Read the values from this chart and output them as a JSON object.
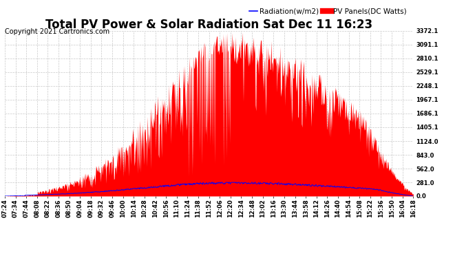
{
  "title": "Total PV Power & Solar Radiation Sat Dec 11 16:23",
  "copyright": "Copyright 2021 Cartronics.com",
  "legend_radiation": "Radiation(w/m2)",
  "legend_pv": "PV Panels(DC Watts)",
  "yticks": [
    0.0,
    281.0,
    562.0,
    843.0,
    1124.0,
    1405.1,
    1686.1,
    1967.1,
    2248.1,
    2529.1,
    2810.1,
    3091.1,
    3372.1
  ],
  "ymax": 3372.1,
  "ymin": 0.0,
  "background_color": "#ffffff",
  "grid_color": "#c8c8c8",
  "fill_color": "#ff0000",
  "line_color_radiation": "#0000ff",
  "title_fontsize": 12,
  "copyright_fontsize": 7,
  "tick_label_fontsize": 6,
  "legend_fontsize": 7.5,
  "xtick_labels": [
    "07:24",
    "07:34",
    "07:44",
    "08:08",
    "08:22",
    "08:36",
    "08:50",
    "09:04",
    "09:18",
    "09:32",
    "09:46",
    "10:00",
    "10:14",
    "10:28",
    "10:42",
    "10:56",
    "11:10",
    "11:24",
    "11:38",
    "11:52",
    "12:06",
    "12:20",
    "12:34",
    "12:48",
    "13:02",
    "13:16",
    "13:30",
    "13:44",
    "13:58",
    "14:12",
    "14:26",
    "14:40",
    "14:54",
    "15:08",
    "15:22",
    "15:36",
    "15:50",
    "16:04",
    "16:18"
  ]
}
